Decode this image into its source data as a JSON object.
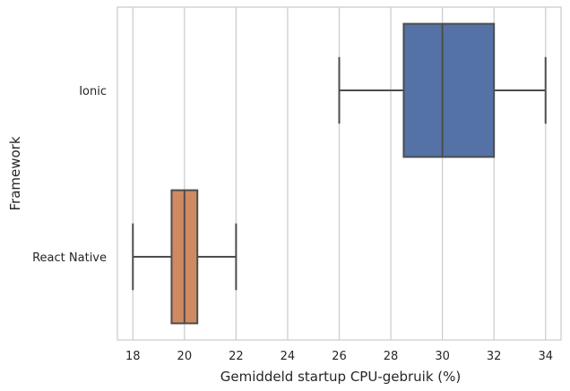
{
  "chart_data": {
    "type": "boxplot",
    "orientation": "horizontal",
    "xlabel": "Gemiddeld startup CPU-gebruik (%)",
    "ylabel": "Framework",
    "xlim": [
      17.4,
      34.6
    ],
    "xticks": [
      18,
      20,
      22,
      24,
      26,
      28,
      30,
      32,
      34
    ],
    "grid": "vertical",
    "categories": [
      "Ionic",
      "React Native"
    ],
    "boxes": [
      {
        "category": "Ionic",
        "whisker_low": 26,
        "q1": 28.5,
        "median": 30,
        "q3": 32,
        "whisker_high": 34,
        "color": "#5572A6"
      },
      {
        "category": "React Native",
        "whisker_low": 18,
        "q1": 19.5,
        "median": 20,
        "q3": 20.5,
        "whisker_high": 22,
        "color": "#CF8A61"
      }
    ]
  }
}
